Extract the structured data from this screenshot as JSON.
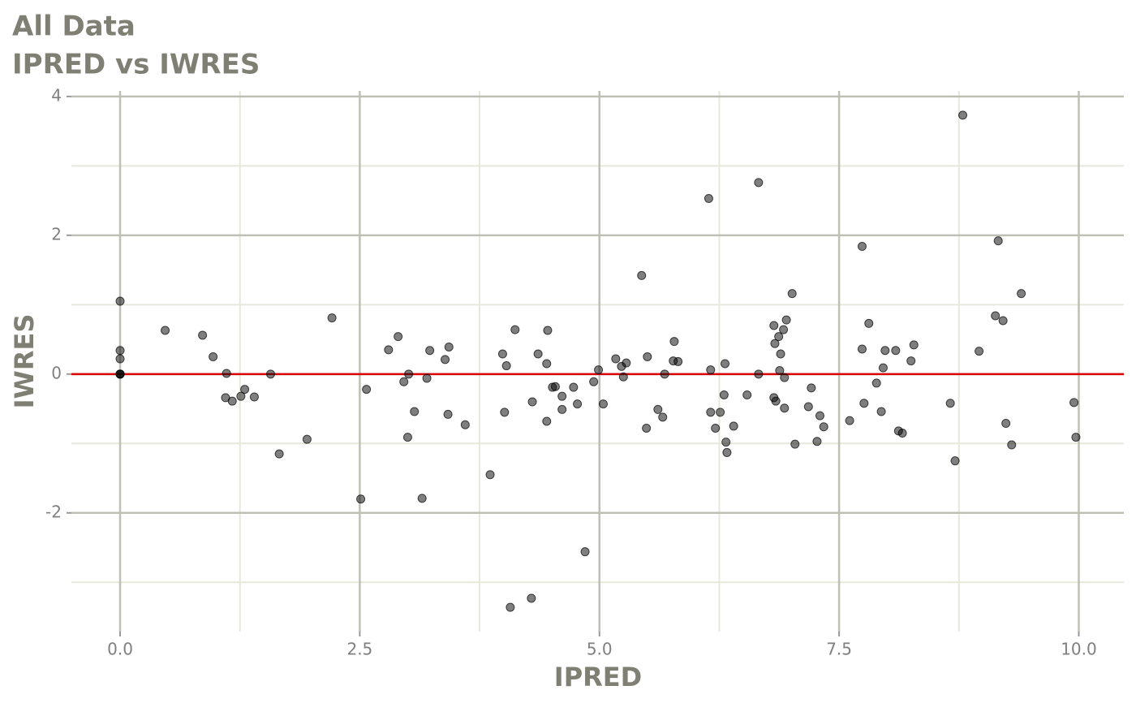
{
  "chart_data": {
    "type": "scatter",
    "title": "All Data",
    "subtitle": "IPRED vs IWRES",
    "x_label": "IPRED",
    "y_label": "IWRES",
    "xlim": [
      -0.508,
      10.47
    ],
    "ylim": [
      -3.71,
      4.08
    ],
    "xticks": [
      {
        "value": 0,
        "label": "0.0"
      },
      {
        "value": 2.5,
        "label": "2.5"
      },
      {
        "value": 5,
        "label": "5.0"
      },
      {
        "value": 7.5,
        "label": "7.5"
      },
      {
        "value": 10,
        "label": "10.0"
      }
    ],
    "yticks": [
      -2,
      0,
      2,
      4
    ],
    "x_minor_ticks": [
      1.25,
      3.75,
      6.25,
      8.75
    ],
    "y_minor_ticks": [
      -3,
      -1,
      1,
      3
    ],
    "grid": true,
    "color": "#000000",
    "opacity": 0.5,
    "hline": 0,
    "hline_color": "#dd0000",
    "x": [
      0,
      0,
      0,
      0,
      0,
      0,
      0.47,
      0.86,
      0.97,
      1.11,
      1.1,
      1.17,
      1.26,
      1.3,
      1.4,
      1.57,
      1.66,
      1.95,
      2.21,
      2.51,
      2.57,
      2.8,
      2.9,
      2.96,
      3.01,
      3.0,
      3.07,
      3.15,
      3.2,
      3.23,
      3.39,
      3.43,
      3.42,
      3.6,
      3.86,
      3.99,
      4.03,
      4.01,
      4.07,
      4.12,
      4.29,
      4.3,
      4.36,
      4.45,
      4.46,
      4.45,
      4.51,
      4.54,
      4.61,
      4.61,
      4.73,
      4.77,
      4.85,
      4.94,
      4.99,
      5.04,
      5.17,
      5.23,
      5.28,
      5.25,
      5.44,
      5.5,
      5.49,
      5.61,
      5.66,
      5.68,
      5.78,
      5.77,
      5.82,
      6.14,
      6.16,
      6.16,
      6.21,
      6.26,
      6.31,
      6.3,
      6.32,
      6.33,
      6.4,
      6.54,
      6.66,
      6.66,
      6.82,
      6.83,
      6.82,
      6.84,
      6.87,
      6.88,
      6.89,
      6.92,
      6.93,
      6.95,
      6.93,
      7.01,
      7.04,
      7.21,
      7.18,
      7.27,
      7.3,
      7.34,
      7.61,
      7.74,
      7.74,
      7.76,
      7.81,
      7.89,
      7.94,
      7.96,
      7.98,
      8.09,
      8.12,
      8.16,
      8.25,
      8.28,
      8.66,
      8.71,
      8.79,
      8.96,
      9.13,
      9.16,
      9.21,
      9.24,
      9.3,
      9.4,
      9.95,
      9.97
    ],
    "values": [
      1.05,
      0.34,
      0.22,
      0,
      0,
      0,
      0.63,
      0.56,
      0.25,
      0.01,
      -0.34,
      -0.39,
      -0.32,
      -0.22,
      -0.33,
      0,
      -1.15,
      -0.94,
      0.81,
      -1.8,
      -0.22,
      0.35,
      0.54,
      -0.11,
      0,
      -0.91,
      -0.54,
      -1.79,
      -0.06,
      0.34,
      0.21,
      0.39,
      -0.58,
      -0.73,
      -1.45,
      0.29,
      0.12,
      -0.55,
      -3.36,
      0.64,
      -3.23,
      -0.4,
      0.29,
      0.15,
      0.63,
      -0.68,
      -0.19,
      -0.18,
      -0.32,
      -0.51,
      -0.19,
      -0.43,
      -2.56,
      -0.11,
      0.06,
      -0.43,
      0.22,
      0.11,
      0.16,
      -0.04,
      1.42,
      0.25,
      -0.78,
      -0.51,
      -0.62,
      0,
      0.47,
      0.19,
      0.18,
      2.53,
      0.06,
      -0.55,
      -0.78,
      -0.55,
      0.15,
      -0.3,
      -0.98,
      -1.13,
      -0.75,
      -0.3,
      2.76,
      0,
      0.7,
      0.44,
      -0.34,
      -0.39,
      0.54,
      0.05,
      0.29,
      0.64,
      -0.05,
      0.78,
      -0.49,
      1.16,
      -1.01,
      -0.2,
      -0.47,
      -0.97,
      -0.6,
      -0.76,
      -0.67,
      1.84,
      0.36,
      -0.42,
      0.73,
      -0.13,
      -0.54,
      0.09,
      0.34,
      0.34,
      -0.82,
      -0.85,
      0.19,
      0.42,
      -0.42,
      -1.25,
      3.73,
      0.33,
      0.84,
      1.92,
      0.77,
      -0.71,
      -1.02,
      1.16,
      -0.41,
      -0.91
    ]
  }
}
